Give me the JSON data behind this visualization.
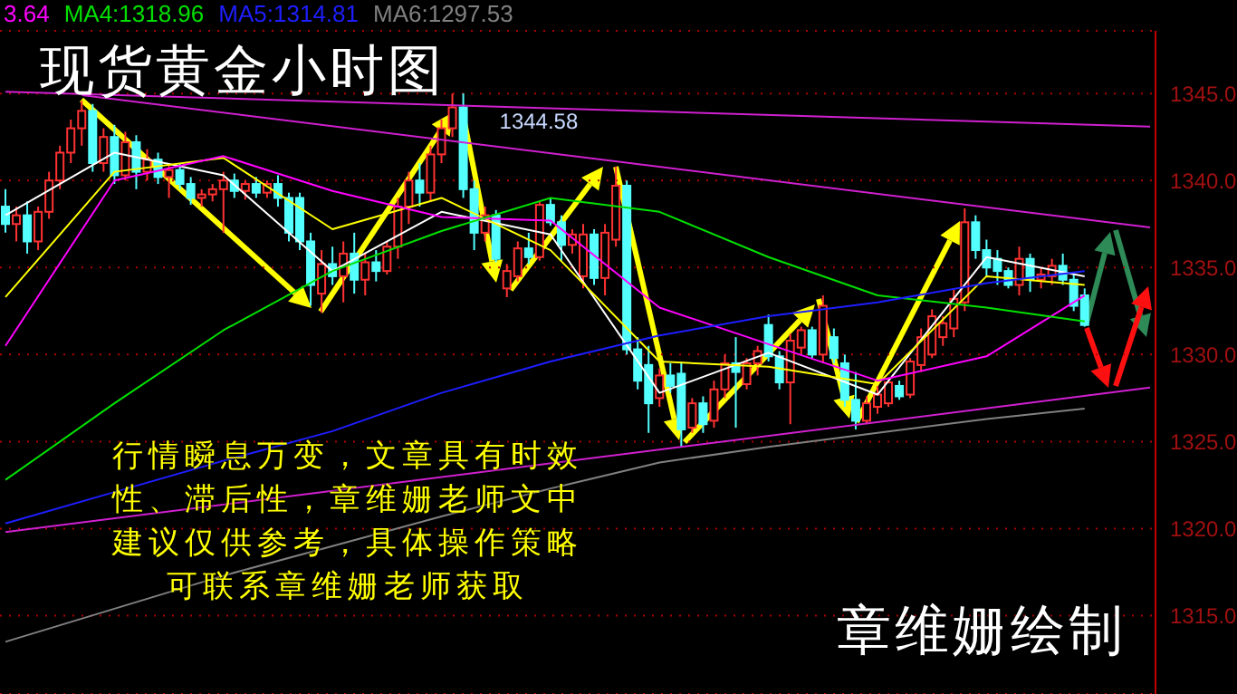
{
  "chart_data": {
    "type": "candlestick",
    "title": "现货黄金小时图",
    "categories": [
      null,
      null,
      null,
      null,
      null,
      null,
      null,
      null,
      null,
      null,
      null,
      null,
      null,
      null,
      null,
      null,
      null,
      null,
      null,
      null,
      null,
      null,
      null,
      null,
      null,
      null,
      null,
      null,
      null,
      null,
      null,
      null,
      null,
      null,
      null,
      null,
      null,
      null,
      null,
      null,
      null,
      null,
      null,
      null,
      null,
      null,
      null,
      null,
      null,
      null,
      null,
      null,
      null,
      null,
      null,
      null,
      null,
      null,
      null,
      null,
      null,
      null,
      null,
      null,
      null,
      null,
      null,
      null,
      null,
      null,
      null,
      null,
      null,
      null,
      null,
      null,
      null,
      null,
      null,
      null,
      null,
      null,
      null,
      null,
      null,
      null,
      null,
      null,
      null,
      null,
      null,
      null,
      null,
      null,
      null,
      null,
      null,
      null,
      null,
      null,
      null,
      null,
      null,
      null,
      null,
      null
    ],
    "ohlc": [
      [
        1338.5,
        1339.5,
        1337,
        1337.5
      ],
      [
        1337.5,
        1338.5,
        1336.5,
        1338
      ],
      [
        1338,
        1338.8,
        1335.8,
        1336.5
      ],
      [
        1336.5,
        1338.5,
        1336,
        1338.2
      ],
      [
        1338.2,
        1340.5,
        1337.8,
        1340
      ],
      [
        1340,
        1342,
        1339.5,
        1341.6
      ],
      [
        1341.6,
        1343.5,
        1341,
        1343
      ],
      [
        1343,
        1344.58,
        1342,
        1344
      ],
      [
        1344,
        1344.4,
        1340.5,
        1341
      ],
      [
        1341,
        1343,
        1340.5,
        1342.5
      ],
      [
        1342.5,
        1343.2,
        1339.8,
        1340.3
      ],
      [
        1340.3,
        1342.8,
        1340,
        1342.2
      ],
      [
        1342.2,
        1342.6,
        1339.5,
        1340.5
      ],
      [
        1340.5,
        1341.8,
        1340,
        1341.2
      ],
      [
        1341.2,
        1341.6,
        1339.8,
        1340.2
      ],
      [
        1340.2,
        1341,
        1339,
        1340.6
      ],
      [
        1340.6,
        1341,
        1339.5,
        1339.8
      ],
      [
        1339.8,
        1340.2,
        1338.6,
        1339
      ],
      [
        1339,
        1339.5,
        1338.5,
        1339.2
      ],
      [
        1339.2,
        1339.8,
        1338.8,
        1339.5
      ],
      [
        1339.5,
        1340.5,
        1337,
        1340
      ],
      [
        1340,
        1340.4,
        1339,
        1339.4
      ],
      [
        1339.4,
        1340,
        1338.9,
        1339.8
      ],
      [
        1339.8,
        1340.2,
        1339,
        1339.3
      ],
      [
        1339.3,
        1340,
        1339,
        1339.8
      ],
      [
        1339.8,
        1340.3,
        1338.5,
        1339
      ],
      [
        1339,
        1339.3,
        1336.5,
        1337
      ],
      [
        1339,
        1339.3,
        1336,
        1336.5
      ],
      [
        1336.5,
        1337,
        1332.8,
        1334
      ],
      [
        1333.5,
        1336,
        1332.4,
        1335.2
      ],
      [
        1335.2,
        1336.2,
        1334,
        1334.5
      ],
      [
        1334.5,
        1336.5,
        1333,
        1335.8
      ],
      [
        1335.8,
        1337,
        1333.5,
        1334.3
      ],
      [
        1334.3,
        1335.8,
        1333.4,
        1335.3
      ],
      [
        1335.3,
        1336,
        1334.2,
        1334.8
      ],
      [
        1334.8,
        1336.5,
        1334.6,
        1336.2
      ],
      [
        1336.2,
        1339,
        1335.5,
        1338.5
      ],
      [
        1338.5,
        1340.5,
        1337.5,
        1340
      ],
      [
        1340,
        1341,
        1338.5,
        1339.3
      ],
      [
        1339.3,
        1342,
        1338.8,
        1341.5
      ],
      [
        1341.5,
        1343.5,
        1341,
        1343
      ],
      [
        1343,
        1345,
        1342.5,
        1344.2
      ],
      [
        1344.2,
        1345,
        1339,
        1339.5
      ],
      [
        1339.5,
        1340,
        1336,
        1337
      ],
      [
        1337,
        1338.5,
        1336.5,
        1338
      ],
      [
        1338,
        1338.3,
        1335.3,
        1335.5
      ],
      [
        1333.8,
        1335.2,
        1333.3,
        1334.8
      ],
      [
        1334.5,
        1336.5,
        1334.2,
        1336.1
      ],
      [
        1336.1,
        1337,
        1335.2,
        1335.6
      ],
      [
        1335.6,
        1338.8,
        1335.4,
        1338.6
      ],
      [
        1338.6,
        1339,
        1337.4,
        1337.6
      ],
      [
        1337.6,
        1338,
        1335.4,
        1336.3
      ],
      [
        1336.3,
        1337.2,
        1335.8,
        1336.9
      ],
      [
        1334.5,
        1337.5,
        1333.8,
        1336.9
      ],
      [
        1336.9,
        1337.2,
        1334,
        1334.4
      ],
      [
        1334.4,
        1337.5,
        1333.4,
        1337
      ],
      [
        1336.6,
        1340.8,
        1336.2,
        1339.7
      ],
      [
        1339.7,
        1340,
        1330,
        1330.3
      ],
      [
        1330.3,
        1331,
        1328,
        1328.5
      ],
      [
        1329.4,
        1330.5,
        1325.5,
        1327.2
      ],
      [
        1327.5,
        1329.2,
        1327,
        1328.8
      ],
      [
        1328.8,
        1329.5,
        1327.8,
        1328.2
      ],
      [
        1328.9,
        1329.6,
        1324.7,
        1325.7
      ],
      [
        1325.8,
        1327.5,
        1325.5,
        1327.2
      ],
      [
        1327.2,
        1327.6,
        1325.5,
        1326
      ],
      [
        1326.2,
        1328.5,
        1325.8,
        1328
      ],
      [
        1328,
        1330,
        1327.5,
        1329.5
      ],
      [
        1329.5,
        1331,
        1325.8,
        1329
      ],
      [
        1328.3,
        1329.8,
        1328,
        1329.5
      ],
      [
        1329.5,
        1330.5,
        1328.8,
        1330.2
      ],
      [
        1331.7,
        1332.3,
        1329.6,
        1329.9
      ],
      [
        1329.9,
        1330.2,
        1328,
        1328.4
      ],
      [
        1328.4,
        1331.2,
        1326,
        1330.8
      ],
      [
        1330.4,
        1331.6,
        1330,
        1331.4
      ],
      [
        1331.4,
        1331.6,
        1329.8,
        1330
      ],
      [
        1330,
        1333.4,
        1329.5,
        1332.8
      ],
      [
        1331,
        1331.5,
        1329.5,
        1329.8
      ],
      [
        1329.5,
        1330,
        1327,
        1327.4
      ],
      [
        1327.4,
        1329,
        1325.7,
        1326.2
      ],
      [
        1326.2,
        1327.6,
        1326,
        1327.2
      ],
      [
        1327,
        1328.2,
        1326.6,
        1327.7
      ],
      [
        1327.2,
        1328.6,
        1327,
        1328.4
      ],
      [
        1328.2,
        1328.5,
        1327.4,
        1327.6
      ],
      [
        1327.7,
        1329.8,
        1327.5,
        1329.6
      ],
      [
        1329.4,
        1331.5,
        1329,
        1331
      ],
      [
        1330,
        1332.6,
        1329.8,
        1332.2
      ],
      [
        1331,
        1332.2,
        1330.5,
        1331.8
      ],
      [
        1331.5,
        1333.8,
        1331,
        1333.2
      ],
      [
        1333,
        1338.4,
        1332.5,
        1337.6
      ],
      [
        1337.6,
        1338,
        1335.5,
        1336
      ],
      [
        1336,
        1336.6,
        1334.5,
        1335
      ],
      [
        1335.5,
        1336,
        1334,
        1334.8
      ],
      [
        1334.8,
        1335,
        1333.8,
        1334
      ],
      [
        1334,
        1336.2,
        1333.4,
        1335.5
      ],
      [
        1335.5,
        1335.8,
        1333.6,
        1334.3
      ],
      [
        1334.3,
        1335,
        1333.8,
        1334.6
      ],
      [
        1334.5,
        1335.5,
        1334,
        1335.1
      ],
      [
        1335.1,
        1335.8,
        1334,
        1334.3
      ],
      [
        1334.3,
        1334.6,
        1332.5,
        1332.8
      ],
      [
        1333.4,
        1333.8,
        1331.6,
        1331.7
      ],
      null,
      null,
      null,
      null,
      null,
      null
    ],
    "series": [
      {
        "type": "line",
        "color": "#ffffff",
        "values": [
          1338,
          null,
          null,
          null,
          null,
          null,
          null,
          null,
          null,
          null,
          1341.6,
          null,
          null,
          null,
          null,
          null,
          null,
          null,
          null,
          null,
          1340.3,
          null,
          null,
          null,
          null,
          null,
          null,
          null,
          null,
          null,
          1334.8,
          null,
          null,
          null,
          null,
          null,
          null,
          null,
          null,
          null,
          1338.2,
          null,
          null,
          null,
          null,
          null,
          null,
          null,
          null,
          null,
          1336.9,
          null,
          null,
          null,
          null,
          null,
          null,
          null,
          null,
          null,
          1327.8,
          null,
          null,
          null,
          null,
          null,
          null,
          null,
          null,
          null,
          1330.1,
          null,
          null,
          null,
          null,
          null,
          null,
          null,
          null,
          null,
          1327.7,
          null,
          null,
          null,
          null,
          null,
          null,
          null,
          null,
          null,
          1335.6,
          null,
          null,
          null,
          null,
          null,
          null,
          null,
          null,
          1334.5,
          null,
          null,
          null,
          null,
          null,
          null
        ]
      },
      {
        "type": "line",
        "color": "#ffff00",
        "values": [
          1333.3,
          null,
          null,
          null,
          null,
          null,
          null,
          null,
          null,
          null,
          1340.5,
          null,
          null,
          null,
          null,
          null,
          null,
          null,
          null,
          null,
          1341.3,
          null,
          null,
          null,
          null,
          null,
          null,
          null,
          null,
          null,
          1337.2,
          null,
          null,
          null,
          null,
          null,
          null,
          null,
          null,
          null,
          1339,
          null,
          null,
          null,
          null,
          null,
          null,
          null,
          null,
          null,
          1336,
          null,
          null,
          null,
          null,
          null,
          null,
          null,
          null,
          null,
          1329.6,
          null,
          null,
          null,
          null,
          null,
          null,
          null,
          null,
          null,
          1329.3,
          null,
          null,
          null,
          null,
          null,
          null,
          null,
          null,
          null,
          1328.3,
          null,
          null,
          null,
          null,
          null,
          null,
          null,
          null,
          null,
          1334.5,
          null,
          null,
          null,
          null,
          null,
          null,
          null,
          null,
          1334,
          null,
          null,
          null,
          null,
          null,
          null
        ]
      },
      {
        "type": "line",
        "name": "3.64",
        "color": "#ff00ff",
        "values": [
          1330.5,
          null,
          null,
          null,
          null,
          null,
          null,
          null,
          null,
          null,
          1340,
          null,
          null,
          null,
          null,
          null,
          null,
          null,
          null,
          null,
          1341.4,
          null,
          null,
          null,
          null,
          null,
          null,
          null,
          null,
          null,
          1339.4,
          null,
          null,
          null,
          null,
          null,
          null,
          null,
          null,
          null,
          1337.9,
          null,
          null,
          null,
          null,
          null,
          null,
          null,
          null,
          null,
          1337.7,
          null,
          null,
          null,
          null,
          null,
          null,
          null,
          null,
          null,
          1332.7,
          null,
          null,
          null,
          null,
          null,
          null,
          null,
          null,
          null,
          1330.6,
          null,
          null,
          null,
          null,
          null,
          null,
          null,
          null,
          null,
          1328.5,
          null,
          null,
          null,
          null,
          null,
          null,
          null,
          null,
          null,
          1329.9,
          null,
          null,
          null,
          null,
          null,
          null,
          null,
          null,
          1333.4,
          null,
          null,
          null,
          null,
          null,
          null
        ]
      },
      {
        "type": "line",
        "name": "MA4:1318.96",
        "color": "#00e000",
        "values": [
          1322.8,
          null,
          null,
          null,
          null,
          null,
          null,
          null,
          null,
          null,
          1327.2,
          null,
          null,
          null,
          null,
          null,
          null,
          null,
          null,
          null,
          1331.4,
          null,
          null,
          null,
          null,
          null,
          null,
          null,
          null,
          null,
          1334.8,
          null,
          null,
          null,
          null,
          null,
          null,
          null,
          null,
          null,
          1337.1,
          null,
          null,
          null,
          null,
          null,
          null,
          null,
          null,
          null,
          1339,
          null,
          null,
          null,
          null,
          null,
          null,
          null,
          null,
          null,
          1338.2,
          null,
          null,
          null,
          null,
          null,
          null,
          null,
          null,
          null,
          1335.6,
          null,
          null,
          null,
          null,
          null,
          null,
          null,
          null,
          null,
          1333.4,
          null,
          null,
          null,
          null,
          null,
          null,
          null,
          null,
          null,
          1332.7,
          null,
          null,
          null,
          null,
          null,
          null,
          null,
          null,
          1331.9,
          null,
          null,
          null,
          null,
          null,
          null
        ]
      },
      {
        "type": "line",
        "name": "MA5:1314.81",
        "color": "#1e1eff",
        "values": [
          1320.3,
          null,
          null,
          null,
          null,
          null,
          null,
          null,
          null,
          null,
          1322.1,
          null,
          null,
          null,
          null,
          null,
          null,
          null,
          null,
          null,
          1323.9,
          null,
          null,
          null,
          null,
          null,
          null,
          null,
          null,
          null,
          1325.6,
          null,
          null,
          null,
          null,
          null,
          null,
          null,
          null,
          null,
          1327.8,
          null,
          null,
          null,
          null,
          null,
          null,
          null,
          null,
          null,
          1329.6,
          null,
          null,
          null,
          null,
          null,
          null,
          null,
          null,
          null,
          1331.1,
          null,
          null,
          null,
          null,
          null,
          null,
          null,
          null,
          null,
          1332.2,
          null,
          null,
          null,
          null,
          null,
          null,
          null,
          null,
          null,
          1333,
          null,
          null,
          null,
          null,
          null,
          null,
          null,
          null,
          null,
          1334.1,
          null,
          null,
          null,
          null,
          null,
          null,
          null,
          null,
          1334.8,
          null,
          null,
          null,
          null,
          null,
          null
        ]
      },
      {
        "type": "line",
        "name": "MA6:1297.53",
        "color": "#808080",
        "values": [
          1313.5,
          null,
          null,
          null,
          null,
          null,
          null,
          null,
          null,
          null,
          1315.4,
          null,
          null,
          null,
          null,
          null,
          null,
          null,
          null,
          null,
          1317.3,
          null,
          null,
          null,
          null,
          null,
          null,
          null,
          null,
          null,
          1319,
          null,
          null,
          null,
          null,
          null,
          null,
          null,
          null,
          null,
          1320.7,
          null,
          null,
          null,
          null,
          null,
          null,
          null,
          null,
          null,
          1322.3,
          null,
          null,
          null,
          null,
          null,
          null,
          null,
          null,
          null,
          1323.8,
          null,
          null,
          null,
          null,
          null,
          null,
          null,
          null,
          null,
          1324.7,
          null,
          null,
          null,
          null,
          null,
          null,
          null,
          null,
          null,
          1325.5,
          null,
          null,
          null,
          null,
          null,
          null,
          null,
          null,
          null,
          1326.3,
          null,
          null,
          null,
          null,
          null,
          null,
          null,
          null,
          1326.9,
          null,
          null,
          null,
          null,
          null,
          null
        ]
      },
      {
        "type": "line",
        "color": "#d020d0",
        "values": [
          null,
          null,
          null,
          null,
          null,
          null,
          null,
          1344.9,
          null,
          null,
          null,
          null,
          null,
          null,
          null,
          null,
          null,
          null,
          null,
          null,
          null,
          null,
          null,
          null,
          null,
          null,
          null,
          null,
          null,
          null,
          null,
          null,
          null,
          null,
          null,
          null,
          null,
          null,
          null,
          null,
          null,
          null,
          null,
          null,
          null,
          null,
          null,
          null,
          null,
          null,
          null,
          null,
          null,
          null,
          null,
          null,
          null,
          null,
          null,
          null,
          null,
          null,
          null,
          null,
          null,
          null,
          null,
          null,
          null,
          null,
          null,
          null,
          null,
          null,
          null,
          null,
          null,
          null,
          null,
          null,
          null,
          null,
          null,
          null,
          null,
          null,
          null,
          null,
          null,
          null,
          null,
          null,
          null,
          null,
          null,
          null,
          null,
          null,
          null,
          null,
          null,
          null,
          null,
          null,
          null,
          1337.3
        ]
      },
      {
        "type": "line",
        "color": "#d020d0",
        "values": [
          1345.1,
          null,
          null,
          null,
          null,
          null,
          null,
          null,
          null,
          null,
          null,
          null,
          null,
          null,
          null,
          null,
          null,
          null,
          null,
          null,
          null,
          null,
          null,
          null,
          null,
          null,
          null,
          null,
          null,
          null,
          null,
          null,
          null,
          null,
          null,
          null,
          null,
          null,
          null,
          null,
          null,
          null,
          null,
          null,
          null,
          null,
          null,
          null,
          null,
          null,
          null,
          null,
          null,
          null,
          null,
          null,
          null,
          null,
          null,
          null,
          null,
          null,
          null,
          null,
          null,
          null,
          null,
          null,
          null,
          null,
          null,
          null,
          null,
          null,
          null,
          null,
          null,
          null,
          null,
          null,
          null,
          null,
          null,
          null,
          null,
          null,
          null,
          null,
          null,
          null,
          null,
          null,
          null,
          null,
          null,
          null,
          null,
          null,
          null,
          null,
          null,
          null,
          null,
          null,
          null,
          1343.1
        ]
      },
      {
        "type": "line",
        "color": "#d020d0",
        "values": [
          1319.8,
          null,
          null,
          null,
          null,
          null,
          null,
          null,
          null,
          null,
          null,
          null,
          null,
          null,
          null,
          null,
          null,
          null,
          null,
          null,
          null,
          null,
          null,
          null,
          null,
          null,
          null,
          null,
          null,
          null,
          null,
          null,
          null,
          null,
          null,
          null,
          null,
          null,
          null,
          null,
          null,
          null,
          null,
          null,
          null,
          null,
          null,
          null,
          null,
          null,
          null,
          null,
          null,
          null,
          null,
          null,
          null,
          null,
          null,
          null,
          null,
          null,
          null,
          null,
          null,
          null,
          null,
          null,
          null,
          null,
          null,
          null,
          null,
          null,
          null,
          null,
          null,
          null,
          null,
          null,
          null,
          null,
          null,
          null,
          null,
          null,
          null,
          null,
          null,
          null,
          null,
          null,
          null,
          null,
          null,
          null,
          null,
          null,
          null,
          null,
          null,
          null,
          null,
          null,
          null,
          1328.1
        ]
      }
    ],
    "ylim": [
      1310.5,
      1348.6
    ],
    "yticks": [
      {
        "value": 1315,
        "label": "1315.0"
      },
      {
        "value": 1320,
        "label": "1320.0"
      },
      {
        "value": 1325,
        "label": "1325.0"
      },
      {
        "value": 1330,
        "label": "1330.0"
      },
      {
        "value": 1335,
        "label": "1335.0"
      },
      {
        "value": 1340,
        "label": "1340.0"
      },
      {
        "value": 1345,
        "label": "1345.0"
      }
    ],
    "grid": "y",
    "legend": "top left",
    "tick_labels": "y",
    "annotations": [
      "行情瞬息万变，文章具有时效性、滞后性，章维姗老师文中建议仅供参考，具体操作策略可联系章维姗老师获取",
      "章维姗绘制",
      {
        "text": "1344.58",
        "y": 1344.58
      }
    ]
  }
}
